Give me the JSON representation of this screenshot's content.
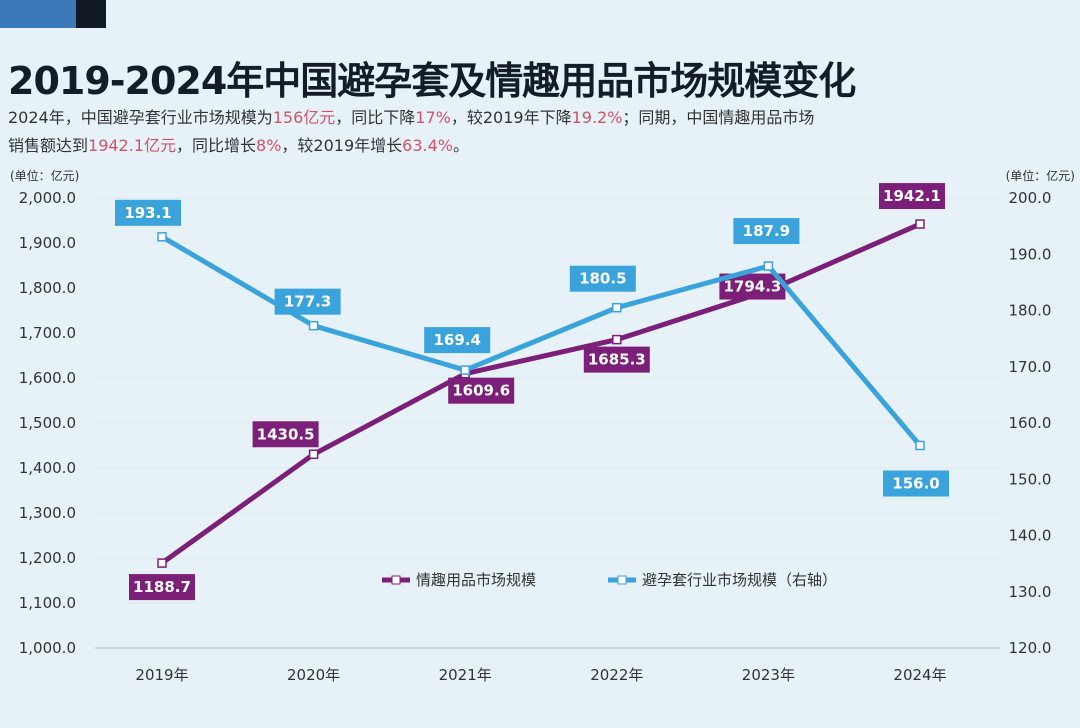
{
  "title": "2019-2024年中国避孕套及情趣用品市场规模变化",
  "subtitle": {
    "line1": [
      {
        "text": "2024年，中国避孕套行业市场规模为",
        "hl": false
      },
      {
        "text": "156亿元",
        "hl": true
      },
      {
        "text": "，同比下降",
        "hl": false
      },
      {
        "text": "17%",
        "hl": true
      },
      {
        "text": "，较2019年下降",
        "hl": false
      },
      {
        "text": "19.2%",
        "hl": true
      },
      {
        "text": "；同期，中国情趣用品市场",
        "hl": false
      }
    ],
    "line2": [
      {
        "text": "销售额达到",
        "hl": false
      },
      {
        "text": "1942.1亿元",
        "hl": true
      },
      {
        "text": "，同比增长",
        "hl": false
      },
      {
        "text": "8%",
        "hl": true
      },
      {
        "text": "，较2019年增长",
        "hl": false
      },
      {
        "text": "63.4%",
        "hl": true
      },
      {
        "text": "。",
        "hl": false
      }
    ]
  },
  "colors": {
    "purple": "#7b1f78",
    "blue": "#3aa3dc",
    "highlight": "#d2526a",
    "background": "#e6f2f8"
  },
  "chart_data": {
    "type": "line",
    "categories": [
      "2019年",
      "2020年",
      "2021年",
      "2022年",
      "2023年",
      "2024年"
    ],
    "left_axis": {
      "unit_label": "(单位：亿元)",
      "ylim": [
        1000,
        2000
      ],
      "ticks": [
        "1,000.0",
        "1,100.0",
        "1,200.0",
        "1,300.0",
        "1,400.0",
        "1,500.0",
        "1,600.0",
        "1,700.0",
        "1,800.0",
        "1,900.0",
        "2,000.0"
      ]
    },
    "right_axis": {
      "unit_label": "(单位：亿元)",
      "ylim": [
        120,
        200
      ],
      "ticks": [
        "120.0",
        "130.0",
        "140.0",
        "150.0",
        "160.0",
        "170.0",
        "180.0",
        "190.0",
        "200.0"
      ]
    },
    "series": [
      {
        "name": "情趣用品市场规模",
        "axis": "left",
        "color": "#7b1f78",
        "values": [
          1188.7,
          1430.5,
          1609.6,
          1685.3,
          1794.3,
          1942.1
        ],
        "labels": [
          "1188.7",
          "1430.5",
          "1609.6",
          "1685.3",
          "1794.3",
          "1942.1"
        ]
      },
      {
        "name": "避孕套行业市场规模（右轴）",
        "axis": "right",
        "color": "#3aa3dc",
        "values": [
          193.1,
          177.3,
          169.4,
          180.5,
          187.9,
          156.0
        ],
        "labels": [
          "193.1",
          "177.3",
          "169.4",
          "180.5",
          "187.9",
          "156.0"
        ]
      }
    ],
    "grid": true,
    "legend": "bottom-center"
  }
}
